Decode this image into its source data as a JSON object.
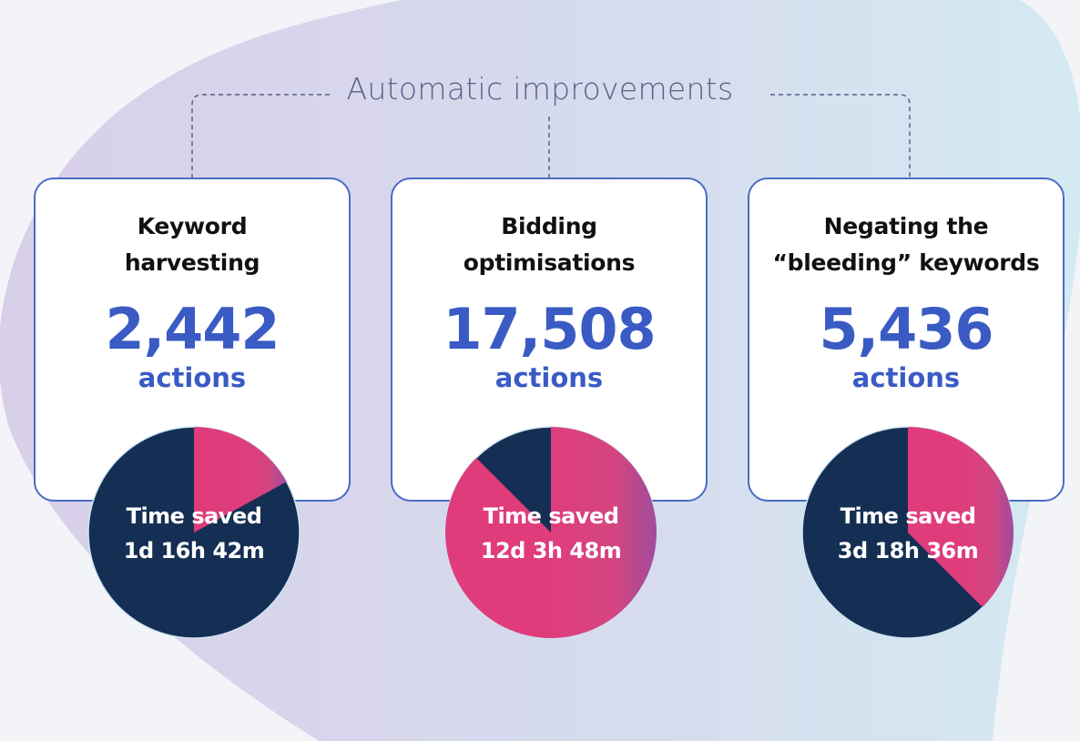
{
  "header": {
    "title": "Automatic improvements"
  },
  "colors": {
    "accent": "#3a5bc4",
    "pie_primary": "#e03c7c",
    "pie_secondary": "#152f54",
    "card_border": "#4a6cc4"
  },
  "cards": [
    {
      "label_line1": "Keyword",
      "label_line2": "harvesting",
      "count": "2,442",
      "unit": "actions",
      "time_label": "Time saved",
      "time_value": "1d 16h 42m",
      "pink_fraction": 0.17
    },
    {
      "label_line1": "Bidding",
      "label_line2": "optimisations",
      "count": "17,508",
      "unit": "actions",
      "time_label": "Time saved",
      "time_value": "12d 3h 48m",
      "pink_fraction": 0.875
    },
    {
      "label_line1": "Negating the",
      "label_line2": "“bleeding” keywords",
      "count": "5,436",
      "unit": "actions",
      "time_label": "Time saved",
      "time_value": "3d 18h 36m",
      "pink_fraction": 0.375
    }
  ]
}
